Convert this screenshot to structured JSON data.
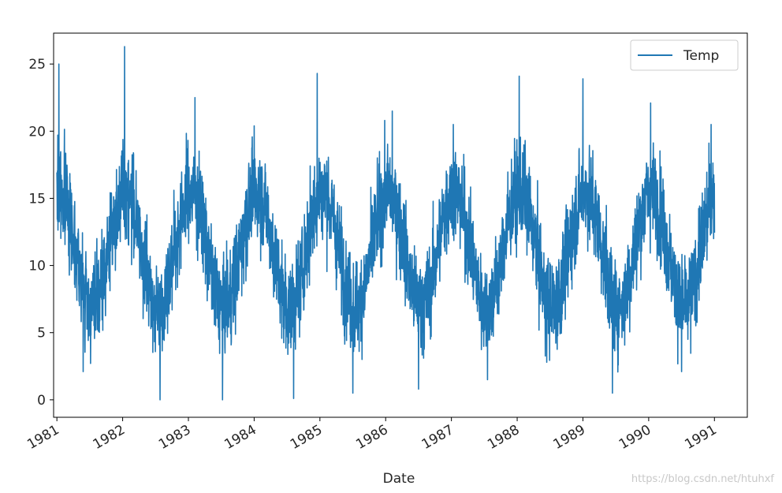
{
  "chart_data": {
    "type": "line",
    "xlabel": "Date",
    "ylabel": "",
    "x_range_years": [
      1981,
      1991
    ],
    "xlim": [
      1980.95,
      1991.5
    ],
    "ylim": [
      -1.3,
      27.3
    ],
    "yticks": [
      0,
      5,
      10,
      15,
      20,
      25
    ],
    "xticks": [
      "1981",
      "1982",
      "1983",
      "1984",
      "1985",
      "1986",
      "1987",
      "1988",
      "1989",
      "1990",
      "1991"
    ],
    "legend": {
      "entries": [
        "Temp"
      ],
      "placement": "top-right"
    },
    "grid": false,
    "series": [
      {
        "name": "Temp",
        "color": "#1f77b4",
        "sampling": "daily",
        "approximation": {
          "annual_mean": 11.2,
          "seasonal_amplitude": 4.3,
          "peak_month": "January",
          "daily_noise_sd": 3.2,
          "min": 0,
          "max": 26.3
        },
        "peaks": [
          {
            "year": 1981.03,
            "value": 25
          },
          {
            "year": 1982.03,
            "value": 26.3
          },
          {
            "year": 1983.1,
            "value": 22.5
          },
          {
            "year": 1984.0,
            "value": 20.4
          },
          {
            "year": 1984.96,
            "value": 24.3
          },
          {
            "year": 1986.1,
            "value": 21.5
          },
          {
            "year": 1987.03,
            "value": 20.5
          },
          {
            "year": 1988.03,
            "value": 24.1
          },
          {
            "year": 1989.0,
            "value": 23.9
          },
          {
            "year": 1990.03,
            "value": 22.1
          },
          {
            "year": 1990.95,
            "value": 20.5
          }
        ],
        "troughs": [
          {
            "year": 1981.4,
            "value": 2.1
          },
          {
            "year": 1982.57,
            "value": 0
          },
          {
            "year": 1983.52,
            "value": 0
          },
          {
            "year": 1984.6,
            "value": 0.1
          },
          {
            "year": 1985.5,
            "value": 0.5
          },
          {
            "year": 1986.5,
            "value": 0.8
          },
          {
            "year": 1987.55,
            "value": 1.5
          },
          {
            "year": 1988.45,
            "value": 2.8
          },
          {
            "year": 1989.45,
            "value": 0.5
          },
          {
            "year": 1990.5,
            "value": 2.1
          }
        ]
      }
    ]
  },
  "watermark": "https://blog.csdn.net/htuhxf"
}
